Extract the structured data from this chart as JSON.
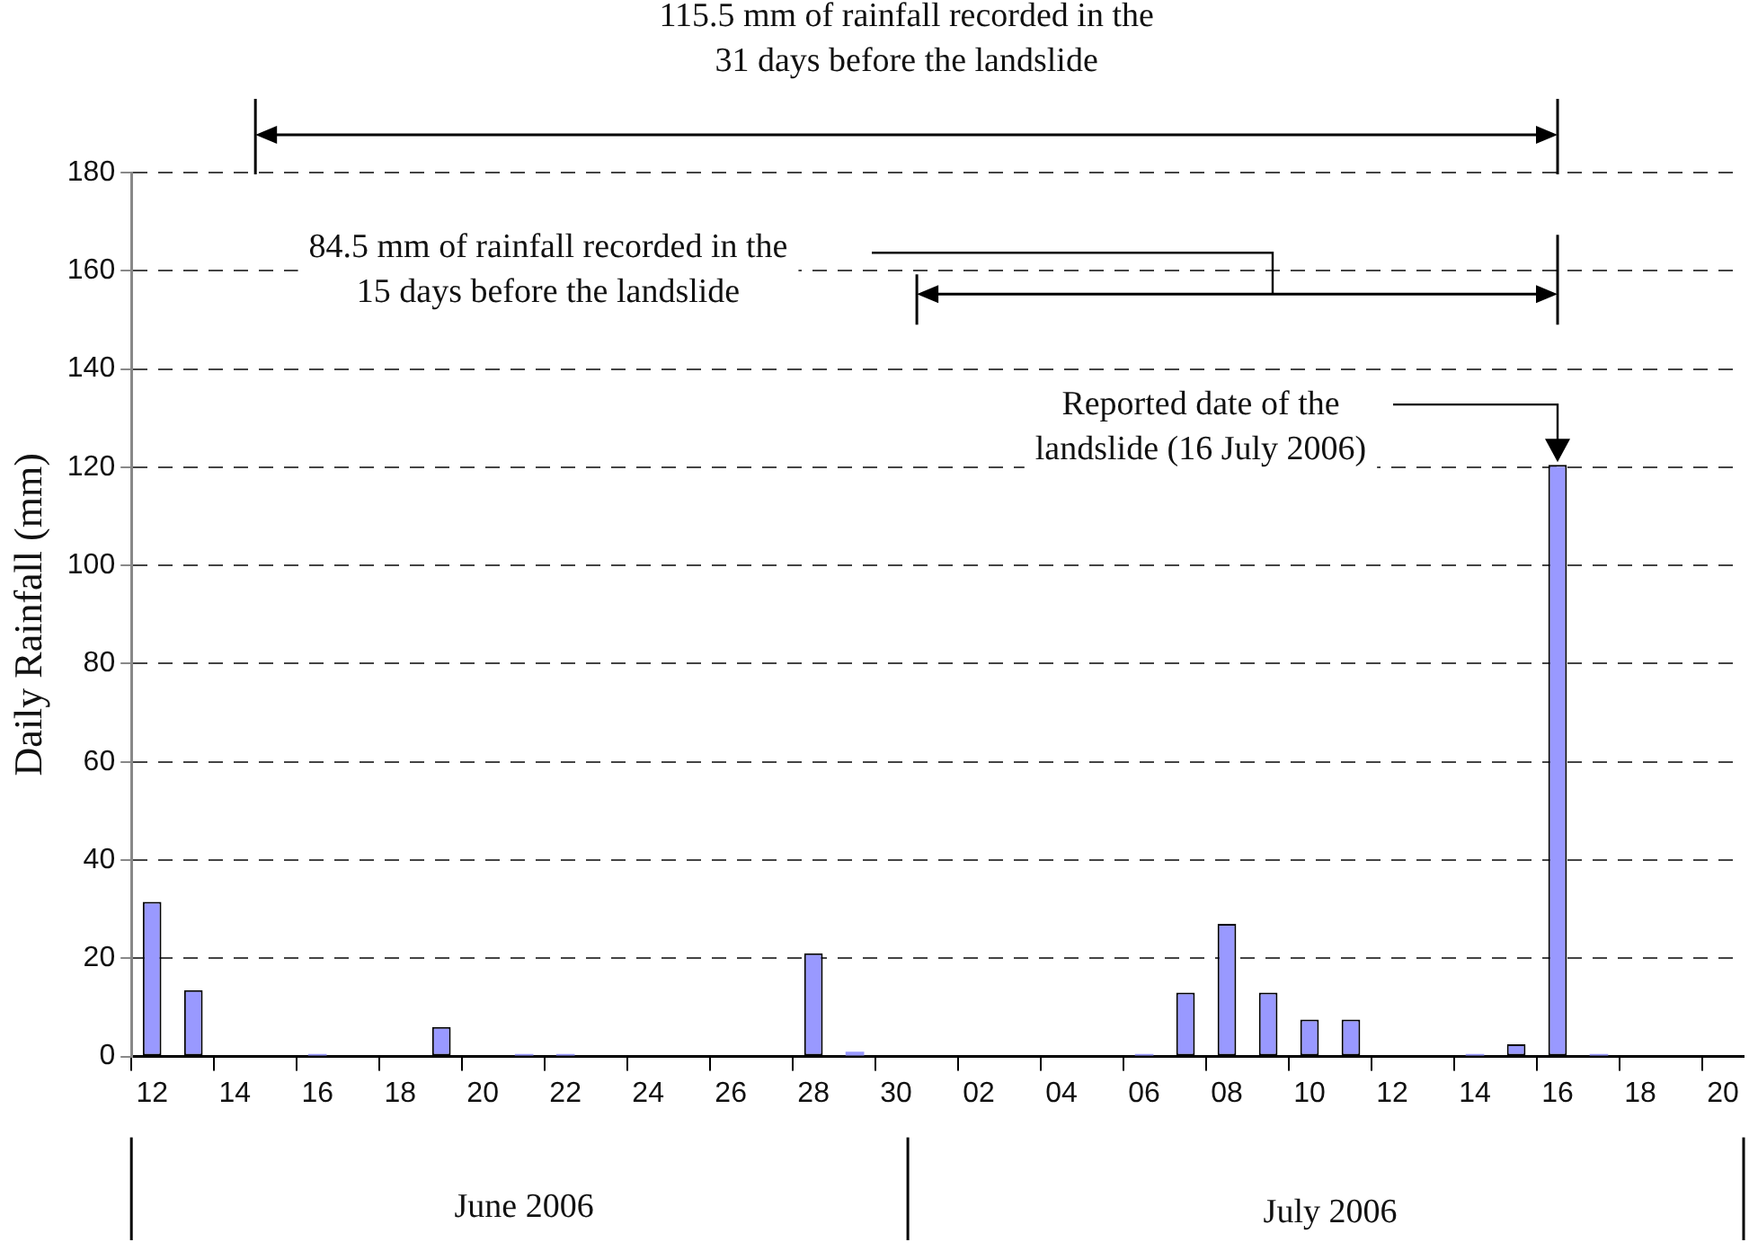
{
  "chart_data": {
    "type": "bar",
    "ylabel": "Daily Rainfall (mm)",
    "categories": [
      "12",
      null,
      "14",
      null,
      "16",
      null,
      "18",
      null,
      "20",
      null,
      "22",
      null,
      "24",
      null,
      "26",
      null,
      "28",
      null,
      "30",
      null,
      "02",
      null,
      "04",
      null,
      "06",
      null,
      "08",
      null,
      "10",
      null,
      "12",
      null,
      "14",
      null,
      "16",
      null,
      "18",
      null,
      "20"
    ],
    "values": [
      31.5,
      13.5,
      0,
      0,
      0.5,
      0,
      0,
      6,
      0,
      0.5,
      0.5,
      0,
      0,
      0,
      0,
      0,
      21,
      1,
      0,
      0,
      0,
      0,
      0,
      0,
      0.5,
      13,
      27,
      13,
      7.5,
      7.5,
      0,
      0,
      0.5,
      2.5,
      120.5,
      0.5,
      0,
      0,
      0
    ],
    "color": "#9999ff",
    "ylim": [
      0,
      180
    ],
    "yticks": [
      0,
      20,
      40,
      60,
      80,
      100,
      120,
      140,
      160,
      180
    ],
    "grid": "y",
    "annotations": [
      "115.5 mm of rainfall recorded in the\n31 days before the landslide",
      "84.5 mm of rainfall recorded in the\n15 days before the landslide",
      "Reported date of the\nlandslide (16 July 2006)",
      "June 2006",
      "July 2006"
    ]
  }
}
